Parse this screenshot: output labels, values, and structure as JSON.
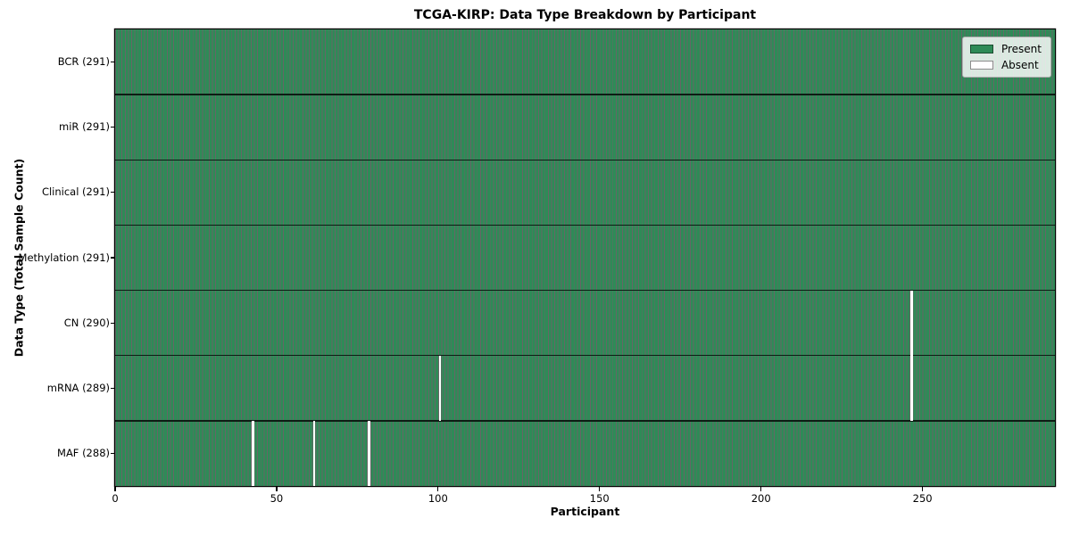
{
  "chart_data": {
    "type": "heatmap",
    "title": "TCGA-KIRP: Data Type Breakdown by Participant",
    "xlabel": "Participant",
    "ylabel": "Data Type (Total Sample Count)",
    "x_axis": {
      "ticks": [
        0,
        50,
        100,
        150,
        200,
        250
      ],
      "range": [
        0,
        291
      ]
    },
    "total_participants": 291,
    "rows": [
      {
        "label": "BCR (291)",
        "data_type": "BCR",
        "count": 291,
        "absent_participants": []
      },
      {
        "label": "miR (291)",
        "data_type": "miR",
        "count": 291,
        "absent_participants": []
      },
      {
        "label": "Clinical (291)",
        "data_type": "Clinical",
        "count": 291,
        "absent_participants": []
      },
      {
        "label": "Methylation (291)",
        "data_type": "Methylation",
        "count": 291,
        "absent_participants": []
      },
      {
        "label": "CN (290)",
        "data_type": "CN",
        "count": 290,
        "absent_participants": [
          246
        ]
      },
      {
        "label": "mRNA (289)",
        "data_type": "mRNA",
        "count": 289,
        "absent_participants": [
          100,
          246
        ]
      },
      {
        "label": "MAF (288)",
        "data_type": "MAF",
        "count": 288,
        "absent_participants": [
          42,
          61,
          78
        ]
      }
    ],
    "legend": [
      {
        "label": "Present",
        "color": "#2e8b57"
      },
      {
        "label": "Absent",
        "color": "#ffffff"
      }
    ],
    "legend_position": "upper right",
    "grid": "row-boundaries"
  },
  "colors": {
    "present": "#2e8b57",
    "absent": "#ffffff",
    "bar_edge": "rgba(0,0,0,0.6)",
    "row_line": "rgba(0,0,0,0.78)",
    "spine": "#000000",
    "tick": "#000000",
    "legend_background": "rgba(255,255,255,0.82)",
    "legend_border": "#b0b0b0",
    "swatch_edge": "rgba(0,0,0,0.45)"
  }
}
